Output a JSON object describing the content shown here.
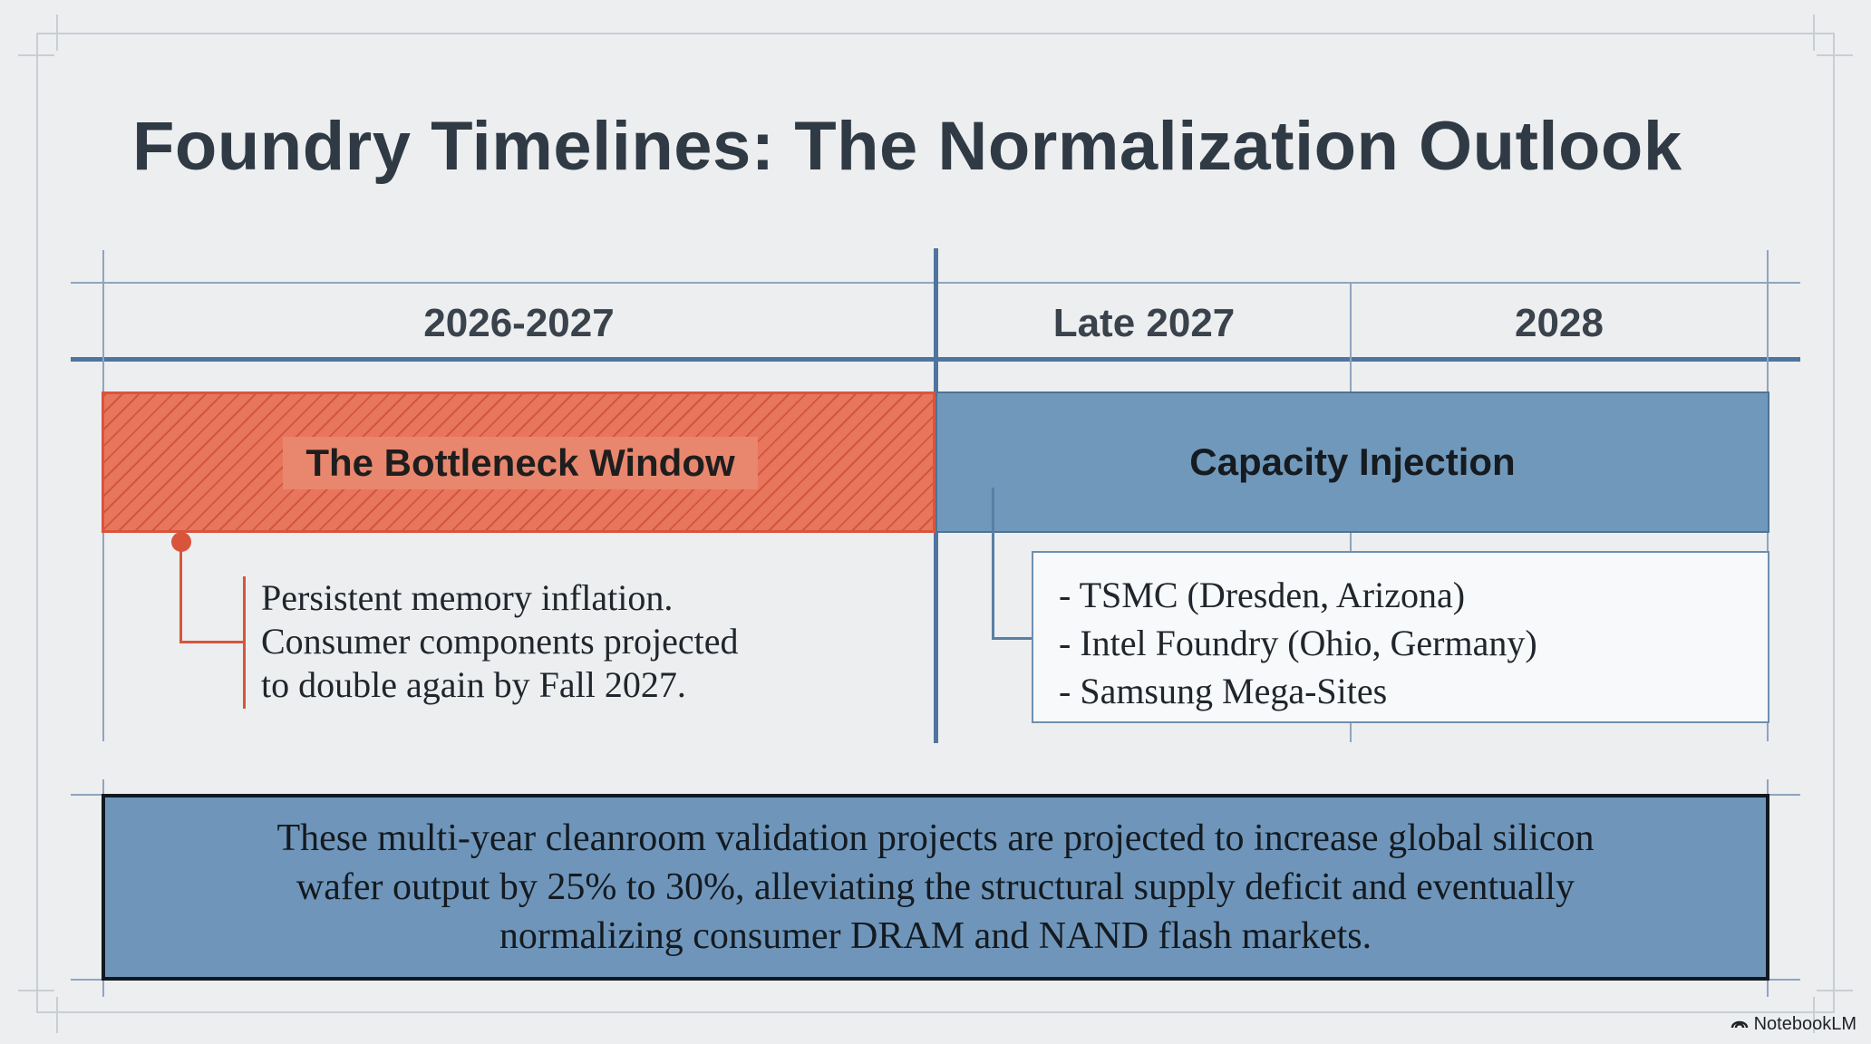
{
  "title": "Foundry Timelines: The Normalization Outlook",
  "columns": [
    "2026-2027",
    "Late 2027",
    "2028"
  ],
  "phases": {
    "bottleneck": {
      "label": "The Bottleneck Window",
      "note_lines": [
        "Persistent memory inflation.",
        "Consumer components projected",
        "to double again by Fall 2027."
      ]
    },
    "capacity": {
      "label": "Capacity Injection",
      "items": [
        "- TSMC (Dresden, Arizona)",
        "- Intel Foundry (Ohio, Germany)",
        "- Samsung Mega-Sites"
      ]
    }
  },
  "summary_lines": [
    "These multi-year cleanroom validation projects are projected to increase global silicon",
    "wafer output by 25% to 30%, alleviating the structural supply deficit and eventually",
    "normalizing consumer DRAM and NAND flash markets."
  ],
  "brand": "NotebookLM",
  "colors": {
    "bottleneck": "#e8765d",
    "capacity": "#7098bb",
    "grid": "#8fa5bd",
    "accent_line": "#4f74a0"
  }
}
